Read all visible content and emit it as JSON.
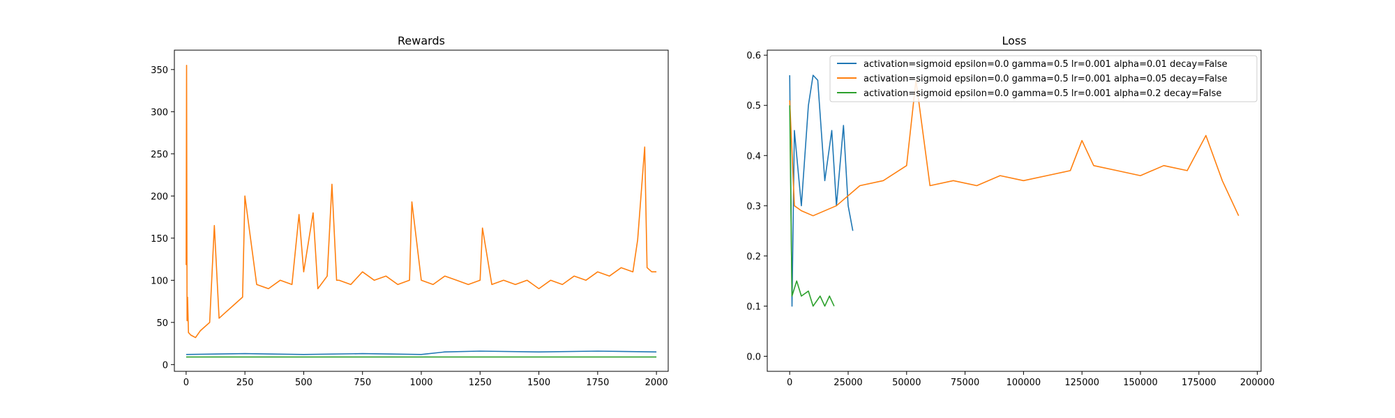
{
  "chart_data": [
    {
      "type": "line",
      "title": "Rewards",
      "xlabel": "",
      "ylabel": "",
      "xlim": [
        -50,
        2050
      ],
      "ylim": [
        -8,
        373
      ],
      "xticks": [
        0,
        250,
        500,
        750,
        1000,
        1250,
        1500,
        1750,
        2000
      ],
      "yticks": [
        0,
        50,
        100,
        150,
        200,
        250,
        300,
        350
      ],
      "grid": false,
      "legend": null,
      "series": [
        {
          "color": "#ff7f0e",
          "x": [
            0,
            2,
            4,
            6,
            10,
            20,
            40,
            60,
            80,
            100,
            120,
            140,
            160,
            200,
            240,
            250,
            300,
            350,
            400,
            450,
            480,
            500,
            540,
            560,
            600,
            620,
            640,
            650,
            700,
            750,
            800,
            850,
            900,
            950,
            960,
            1000,
            1050,
            1100,
            1150,
            1200,
            1250,
            1260,
            1300,
            1350,
            1400,
            1450,
            1500,
            1550,
            1600,
            1650,
            1700,
            1750,
            1800,
            1850,
            1900,
            1920,
            1950,
            1960,
            1980,
            2000
          ],
          "y": [
            118,
            355,
            52,
            80,
            38,
            35,
            32,
            40,
            45,
            50,
            165,
            55,
            60,
            70,
            80,
            200,
            95,
            90,
            100,
            95,
            178,
            110,
            180,
            90,
            105,
            214,
            100,
            100,
            95,
            110,
            100,
            105,
            95,
            100,
            193,
            100,
            95,
            105,
            100,
            95,
            100,
            162,
            95,
            100,
            95,
            100,
            90,
            100,
            95,
            105,
            100,
            110,
            105,
            115,
            110,
            148,
            258,
            115,
            110,
            110
          ]
        },
        {
          "color": "#1f77b4",
          "x": [
            0,
            250,
            500,
            750,
            1000,
            1100,
            1250,
            1500,
            1750,
            2000
          ],
          "y": [
            12,
            13,
            12,
            13,
            12,
            15,
            16,
            15,
            16,
            15
          ]
        },
        {
          "color": "#2ca02c",
          "x": [
            0,
            250,
            500,
            750,
            1000,
            1250,
            1500,
            1750,
            2000
          ],
          "y": [
            9,
            9,
            9,
            9,
            9,
            9,
            9,
            9,
            9
          ]
        }
      ]
    },
    {
      "type": "line",
      "title": "Loss",
      "xlabel": "",
      "ylabel": "",
      "xlim": [
        -9600,
        201600
      ],
      "ylim": [
        -0.03,
        0.61
      ],
      "xticks": [
        0,
        25000,
        50000,
        75000,
        100000,
        125000,
        150000,
        175000,
        200000
      ],
      "yticks": [
        0.0,
        0.1,
        0.2,
        0.3,
        0.4,
        0.5,
        0.6
      ],
      "grid": false,
      "legend": "top-right",
      "series": [
        {
          "name": "activation=sigmoid epsilon=0.0 gamma=0.5 lr=0.001 alpha=0.01 decay=False",
          "color": "#1f77b4",
          "x": [
            0,
            1000,
            2000,
            5000,
            8000,
            10000,
            12000,
            15000,
            18000,
            20000,
            23000,
            25000,
            27000
          ],
          "y": [
            0.56,
            0.1,
            0.45,
            0.3,
            0.5,
            0.56,
            0.55,
            0.35,
            0.45,
            0.3,
            0.46,
            0.3,
            0.25
          ]
        },
        {
          "name": "activation=sigmoid epsilon=0.0 gamma=0.5 lr=0.001 alpha=0.05 decay=False",
          "color": "#ff7f0e",
          "x": [
            0,
            2000,
            5000,
            10000,
            20000,
            30000,
            40000,
            50000,
            54000,
            60000,
            70000,
            80000,
            90000,
            100000,
            110000,
            120000,
            125000,
            130000,
            140000,
            150000,
            160000,
            170000,
            178000,
            185000,
            192000
          ],
          "y": [
            0.51,
            0.3,
            0.29,
            0.28,
            0.3,
            0.34,
            0.35,
            0.38,
            0.55,
            0.34,
            0.35,
            0.34,
            0.36,
            0.35,
            0.36,
            0.37,
            0.43,
            0.38,
            0.37,
            0.36,
            0.38,
            0.37,
            0.44,
            0.35,
            0.28
          ]
        },
        {
          "name": "activation=sigmoid epsilon=0.0 gamma=0.5 lr=0.001 alpha=0.2 decay=False",
          "color": "#2ca02c",
          "x": [
            0,
            500,
            1000,
            3000,
            5000,
            8000,
            10000,
            13000,
            15000,
            17000,
            19000
          ],
          "y": [
            0.5,
            0.3,
            0.12,
            0.15,
            0.12,
            0.13,
            0.1,
            0.12,
            0.1,
            0.12,
            0.1
          ]
        }
      ]
    }
  ]
}
